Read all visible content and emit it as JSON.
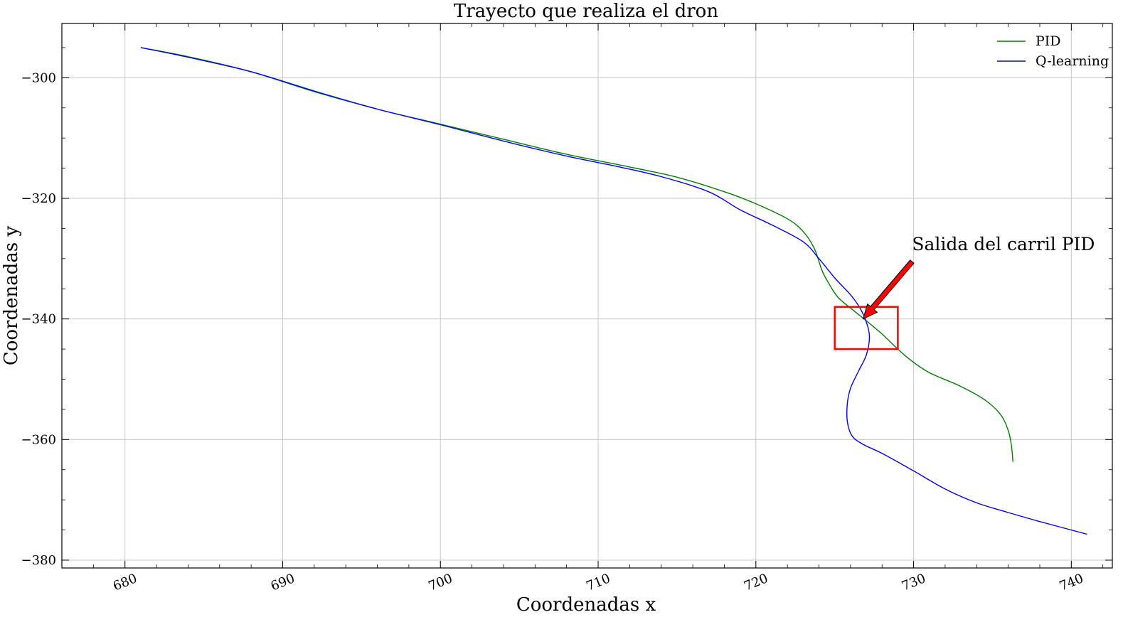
{
  "chart_data": {
    "type": "line",
    "title": "Trayecto que realiza el dron",
    "xlabel": "Coordenadas x",
    "ylabel": "Coordenadas y",
    "xlim": [
      676,
      742.6
    ],
    "ylim": [
      -381.3,
      -291
    ],
    "xticks": [
      680,
      690,
      700,
      710,
      720,
      730,
      740
    ],
    "yticks": [
      -300,
      -320,
      -340,
      -360,
      -380
    ],
    "xtick_labels": [
      "680",
      "690",
      "700",
      "710",
      "720",
      "730",
      "740"
    ],
    "ytick_labels": [
      "−300",
      "−320",
      "−340",
      "−360",
      "−380"
    ],
    "grid": true,
    "legend_position": "top-right",
    "series": [
      {
        "name": "PID",
        "color": "#008000",
        "points": [
          [
            681,
            -295
          ],
          [
            684,
            -296.5
          ],
          [
            688,
            -299
          ],
          [
            692,
            -302.3
          ],
          [
            696,
            -305.2
          ],
          [
            700,
            -307.7
          ],
          [
            704,
            -310.2
          ],
          [
            708,
            -312.7
          ],
          [
            712,
            -314.8
          ],
          [
            715,
            -316.5
          ],
          [
            718,
            -318.9
          ],
          [
            720,
            -320.9
          ],
          [
            722,
            -323.4
          ],
          [
            723,
            -325.5
          ],
          [
            723.7,
            -328.3
          ],
          [
            724.2,
            -332
          ],
          [
            724.6,
            -334
          ],
          [
            725.2,
            -336.4
          ],
          [
            726.1,
            -338.4
          ],
          [
            727,
            -340.3
          ],
          [
            728,
            -342.5
          ],
          [
            729,
            -345
          ],
          [
            729.8,
            -346.8
          ],
          [
            731,
            -348.9
          ],
          [
            733,
            -351.2
          ],
          [
            734.5,
            -353.4
          ],
          [
            735.5,
            -355.8
          ],
          [
            736,
            -358.5
          ],
          [
            736.2,
            -361
          ],
          [
            736.3,
            -363.7
          ]
        ]
      },
      {
        "name": "Q-learning",
        "color": "#0000ff",
        "points": [
          [
            681,
            -295
          ],
          [
            684,
            -296.6
          ],
          [
            688,
            -299
          ],
          [
            692,
            -302.2
          ],
          [
            696,
            -305.2
          ],
          [
            700,
            -307.8
          ],
          [
            704,
            -310.5
          ],
          [
            708,
            -313
          ],
          [
            711,
            -314.6
          ],
          [
            714,
            -316.4
          ],
          [
            717,
            -318.9
          ],
          [
            719,
            -321.9
          ],
          [
            721,
            -324.4
          ],
          [
            723,
            -327.2
          ],
          [
            724,
            -330
          ],
          [
            725,
            -333.2
          ],
          [
            726,
            -336
          ],
          [
            726.6,
            -338.2
          ],
          [
            727,
            -340.5
          ],
          [
            727.2,
            -343
          ],
          [
            727,
            -346
          ],
          [
            726.5,
            -348.7
          ],
          [
            726,
            -351.5
          ],
          [
            725.8,
            -354
          ],
          [
            725.8,
            -357
          ],
          [
            726.1,
            -359.4
          ],
          [
            726.8,
            -360.8
          ],
          [
            728,
            -362.3
          ],
          [
            730,
            -365.2
          ],
          [
            732,
            -368.2
          ],
          [
            734,
            -370.5
          ],
          [
            736,
            -372.1
          ],
          [
            738,
            -373.6
          ],
          [
            741,
            -375.7
          ]
        ]
      }
    ],
    "annotations": [
      {
        "text": "Salida del carril PID",
        "text_anchor": [
          729.9,
          -328.6
        ],
        "arrow_from": [
          729.9,
          -330.5
        ],
        "arrow_to": [
          726.8,
          -340
        ],
        "arrow_color": "#ff0000"
      }
    ],
    "highlight_box": {
      "x_range": [
        725,
        729
      ],
      "y_range": [
        -338,
        -345
      ],
      "color": "#ff0000"
    }
  }
}
